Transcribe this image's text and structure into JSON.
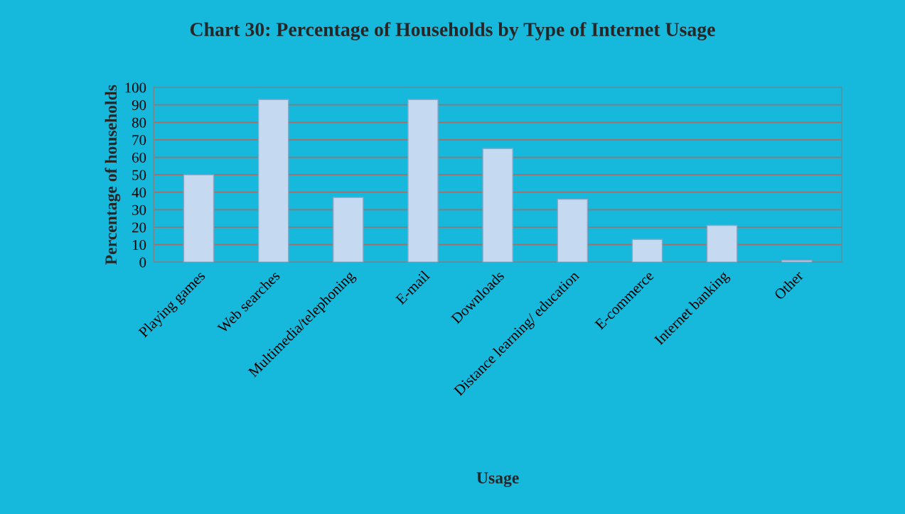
{
  "chart_data": {
    "type": "bar",
    "title": "Chart 30: Percentage of Households by Type of Internet Usage",
    "xlabel": "Usage",
    "ylabel": "Percentage of households",
    "categories": [
      "Playing games",
      "Web searches",
      "Multimedia/telephoning",
      "E-mail",
      "Downloads",
      "Distance learning/ education",
      "E-commerce",
      "Internet banking",
      "Other"
    ],
    "values": [
      50,
      93,
      37,
      93,
      65,
      36,
      13,
      21,
      1
    ],
    "color": "#c5d9f1",
    "ylim": [
      0,
      100
    ],
    "yticks": [
      0,
      10,
      20,
      30,
      40,
      50,
      60,
      70,
      80,
      90,
      100
    ],
    "grid": "y"
  }
}
